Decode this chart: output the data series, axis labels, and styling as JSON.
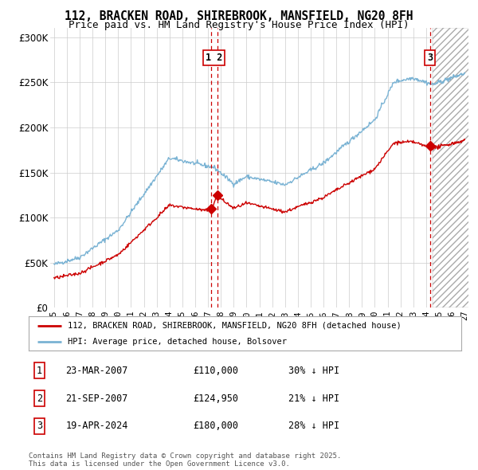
{
  "title": "112, BRACKEN ROAD, SHIREBROOK, MANSFIELD, NG20 8FH",
  "subtitle": "Price paid vs. HM Land Registry's House Price Index (HPI)",
  "ylim": [
    0,
    310000
  ],
  "xlim_start": 1994.7,
  "xlim_end": 2027.3,
  "yticks": [
    0,
    50000,
    100000,
    150000,
    200000,
    250000,
    300000
  ],
  "ytick_labels": [
    "£0",
    "£50K",
    "£100K",
    "£150K",
    "£200K",
    "£250K",
    "£300K"
  ],
  "legend_entries": [
    "112, BRACKEN ROAD, SHIREBROOK, MANSFIELD, NG20 8FH (detached house)",
    "HPI: Average price, detached house, Bolsover"
  ],
  "transactions": [
    {
      "label": "1",
      "date": "23-MAR-2007",
      "price": "£110,000",
      "pct": "30% ↓ HPI",
      "x_year": 2007.22,
      "price_val": 110000
    },
    {
      "label": "2",
      "date": "21-SEP-2007",
      "price": "£124,950",
      "pct": "21% ↓ HPI",
      "x_year": 2007.72,
      "price_val": 124950
    },
    {
      "label": "3",
      "date": "19-APR-2024",
      "price": "£180,000",
      "pct": "28% ↓ HPI",
      "x_year": 2024.3,
      "price_val": 180000
    }
  ],
  "footer": "Contains HM Land Registry data © Crown copyright and database right 2025.\nThis data is licensed under the Open Government Licence v3.0.",
  "bg_color": "#ffffff",
  "grid_color": "#cccccc",
  "hpi_color": "#7ab3d4",
  "price_color": "#cc0000",
  "marker_box_color": "#cc0000",
  "hatch_start": 2024.5
}
